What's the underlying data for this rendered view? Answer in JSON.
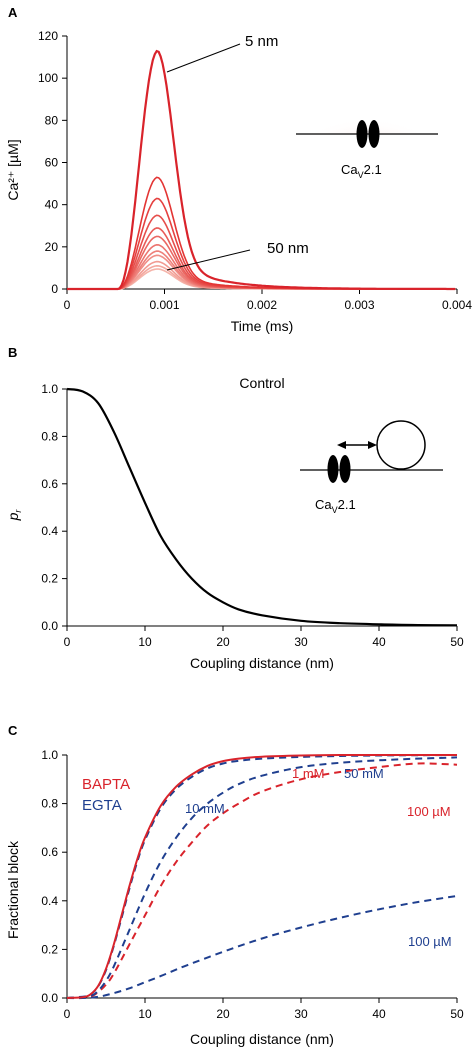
{
  "colors": {
    "red": "#d9232b",
    "blue": "#1f3f8f",
    "black": "#000000",
    "pink_light": "#f6b3ac"
  },
  "chart_data": [
    {
      "panel": "A",
      "type": "line",
      "xlabel": "Time (ms)",
      "ylabel": "Ca²⁺ [µM]",
      "xlim": [
        0,
        0.004
      ],
      "ylim": [
        0,
        120
      ],
      "xticks": [
        "0",
        "0.001",
        "0.002",
        "0.003",
        "0.004"
      ],
      "yticks": [
        "0",
        "20",
        "40",
        "60",
        "80",
        "100",
        "120"
      ],
      "peak_time": 0.00093,
      "series_peaks": [
        113,
        53,
        43,
        35,
        29,
        25,
        21,
        18,
        16,
        13,
        11,
        9.5
      ],
      "annotations": [
        {
          "text": "5 nm",
          "x": 0.00093,
          "y": 113
        },
        {
          "text": "50 nm",
          "x": 0.00093,
          "y": 9.5
        }
      ],
      "inset": {
        "label_main": "Ca",
        "label_sub": "V",
        "label_end": "2.1"
      }
    },
    {
      "panel": "B",
      "type": "line",
      "title": "Control",
      "xlabel": "Coupling distance (nm)",
      "ylabel": "p",
      "ylabel_sub": "r",
      "xlim": [
        0,
        50
      ],
      "ylim": [
        0,
        1
      ],
      "xticks": [
        "0",
        "10",
        "20",
        "30",
        "40",
        "50"
      ],
      "yticks": [
        "0.0",
        "0.2",
        "0.4",
        "0.6",
        "0.8",
        "1.0"
      ],
      "x": [
        0,
        2,
        4,
        6,
        8,
        10,
        12,
        14,
        16,
        18,
        20,
        22,
        25,
        30,
        35,
        40,
        45,
        50
      ],
      "y": [
        1.0,
        0.99,
        0.94,
        0.82,
        0.67,
        0.52,
        0.38,
        0.28,
        0.2,
        0.14,
        0.1,
        0.07,
        0.045,
        0.022,
        0.012,
        0.007,
        0.004,
        0.003
      ],
      "inset": {
        "label_main": "Ca",
        "label_sub": "V",
        "label_end": "2.1"
      }
    },
    {
      "panel": "C",
      "type": "line",
      "xlabel": "Coupling distance (nm)",
      "ylabel": "Fractional block",
      "xlim": [
        0,
        50
      ],
      "ylim": [
        0,
        1
      ],
      "xticks": [
        "0",
        "10",
        "20",
        "30",
        "40",
        "50"
      ],
      "yticks": [
        "0.0",
        "0.2",
        "0.4",
        "0.6",
        "0.8",
        "1.0"
      ],
      "legend": [
        {
          "name": "BAPTA",
          "color": "#d9232b"
        },
        {
          "name": "EGTA",
          "color": "#1f3f8f"
        }
      ],
      "series": [
        {
          "name": "1 mM",
          "chelator": "BAPTA",
          "style": "solid",
          "x": [
            0,
            2,
            3,
            4,
            5,
            6,
            7,
            8,
            9,
            10,
            12,
            14,
            16,
            18,
            20,
            22,
            25,
            30,
            35,
            40,
            45,
            50
          ],
          "y": [
            0,
            0.003,
            0.015,
            0.05,
            0.12,
            0.22,
            0.34,
            0.46,
            0.57,
            0.66,
            0.79,
            0.87,
            0.92,
            0.955,
            0.975,
            0.985,
            0.993,
            0.998,
            1.0,
            1.0,
            1.0,
            1.0
          ]
        },
        {
          "name": "50 mM",
          "chelator": "EGTA",
          "style": "dashed",
          "x": [
            0,
            2,
            3,
            4,
            5,
            6,
            7,
            8,
            9,
            10,
            12,
            14,
            16,
            18,
            20,
            22,
            25,
            30,
            35,
            40,
            45,
            50
          ],
          "y": [
            0,
            0.003,
            0.014,
            0.048,
            0.115,
            0.215,
            0.33,
            0.45,
            0.56,
            0.65,
            0.78,
            0.86,
            0.91,
            0.945,
            0.965,
            0.976,
            0.985,
            0.992,
            0.996,
            0.998,
            0.999,
            1.0
          ]
        },
        {
          "name": "10 mM",
          "chelator": "EGTA",
          "style": "dashed",
          "x": [
            0,
            3,
            4,
            5,
            6,
            8,
            10,
            12,
            14,
            16,
            18,
            20,
            22,
            25,
            30,
            35,
            40,
            45,
            50
          ],
          "y": [
            0,
            0.01,
            0.03,
            0.07,
            0.13,
            0.28,
            0.43,
            0.56,
            0.66,
            0.74,
            0.8,
            0.845,
            0.88,
            0.915,
            0.95,
            0.968,
            0.978,
            0.985,
            0.99
          ]
        },
        {
          "name": "100 µM",
          "chelator": "BAPTA",
          "style": "dashed",
          "x": [
            0,
            3,
            4,
            5,
            6,
            8,
            10,
            12,
            14,
            16,
            18,
            20,
            22,
            25,
            30,
            35,
            40,
            45,
            50
          ],
          "y": [
            0,
            0.008,
            0.025,
            0.055,
            0.1,
            0.22,
            0.34,
            0.46,
            0.56,
            0.64,
            0.71,
            0.76,
            0.8,
            0.85,
            0.9,
            0.93,
            0.95,
            0.965,
            0.96
          ]
        },
        {
          "name": "100 µM",
          "chelator": "EGTA",
          "style": "dashed",
          "x": [
            0,
            2,
            4,
            6,
            8,
            10,
            12,
            15,
            20,
            25,
            30,
            35,
            40,
            45,
            50
          ],
          "y": [
            0,
            0.0,
            0.005,
            0.02,
            0.04,
            0.065,
            0.09,
            0.13,
            0.19,
            0.245,
            0.29,
            0.33,
            0.365,
            0.395,
            0.42
          ]
        }
      ],
      "annotations": [
        {
          "text": "1 mM",
          "color": "#d9232b"
        },
        {
          "text": "50 mM",
          "color": "#1f3f8f"
        },
        {
          "text": "10 mM",
          "color": "#1f3f8f"
        },
        {
          "text": "100 µM",
          "color": "#d9232b"
        },
        {
          "text": "100 µM",
          "color": "#1f3f8f"
        }
      ]
    }
  ],
  "panel_labels": [
    "A",
    "B",
    "C"
  ]
}
